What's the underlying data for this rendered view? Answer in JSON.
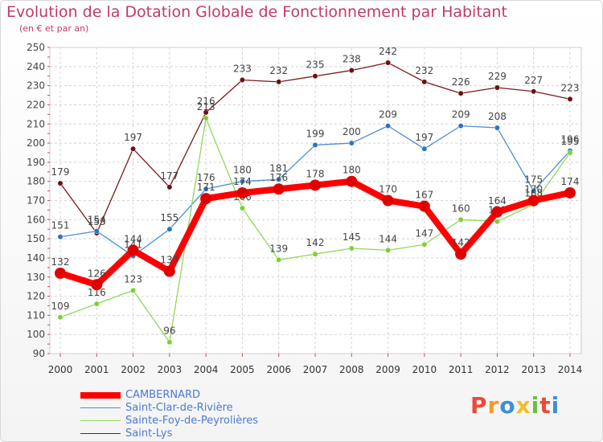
{
  "title": "Evolution de la Dotation Globale de Fonctionnement par Habitant",
  "subtitle": "(en € et par an)",
  "logo": {
    "text": "Proxiti",
    "letters": [
      {
        "char": "P",
        "color": "#e94a3c"
      },
      {
        "char": "r",
        "color": "#f39a2b"
      },
      {
        "char": "o",
        "color": "#3d8fd6"
      },
      {
        "char": "x",
        "color": "#f3c02b"
      },
      {
        "char": "i",
        "color": "#6abf3a"
      },
      {
        "char": "t",
        "color": "#e94a3c"
      },
      {
        "char": "i",
        "color": "#3d8fd6"
      }
    ]
  },
  "chart_data": {
    "type": "line",
    "title": "Evolution de la Dotation Globale de Fonctionnement par Habitant",
    "subtitle": "(en € et par an)",
    "x": [
      "2000",
      "2001",
      "2002",
      "2003",
      "2004",
      "2005",
      "2006",
      "2007",
      "2008",
      "2009",
      "2010",
      "2011",
      "2012",
      "2013",
      "2014"
    ],
    "ylim": [
      90,
      250
    ],
    "yticks": [
      90,
      100,
      110,
      120,
      130,
      140,
      150,
      160,
      170,
      180,
      190,
      200,
      210,
      220,
      230,
      240,
      250
    ],
    "grid": true,
    "legend_position": "bottom-left",
    "series": [
      {
        "name": "Saint-Lys",
        "color": "#7a1a1a",
        "markerColor": "#6b1010",
        "values": [
          179,
          153,
          197,
          177,
          216,
          233,
          232,
          235,
          238,
          242,
          232,
          226,
          229,
          227,
          223
        ]
      },
      {
        "name": "Saint-Clar-de-Rivière",
        "color": "#4b8fd1",
        "markerColor": "#2b74c0",
        "values": [
          151,
          154,
          141,
          155,
          176,
          180,
          181,
          199,
          200,
          209,
          197,
          209,
          208,
          175,
          196
        ]
      },
      {
        "name": "Sainte-Foy-de-Peyrolières",
        "color": "#8fd85a",
        "markerColor": "#7bcf3a",
        "values": [
          109,
          116,
          123,
          96,
          213,
          166,
          139,
          142,
          145,
          144,
          147,
          160,
          159,
          168,
          195
        ]
      },
      {
        "name": "CAMBERNARD",
        "color": "#ff0000",
        "markerColor": "#e00000",
        "values": [
          132,
          126,
          144,
          133,
          171,
          174,
          176,
          178,
          180,
          170,
          167,
          142,
          164,
          170,
          174
        ]
      }
    ],
    "legend": [
      {
        "name": "CAMBERNARD",
        "color": "#ff0000"
      },
      {
        "name": "Saint-Clar-de-Rivière",
        "color": "#4b8fd1"
      },
      {
        "name": "Sainte-Foy-de-Peyrolières",
        "color": "#8fd85a"
      },
      {
        "name": "Saint-Lys",
        "color": "#7a1a1a"
      }
    ]
  }
}
